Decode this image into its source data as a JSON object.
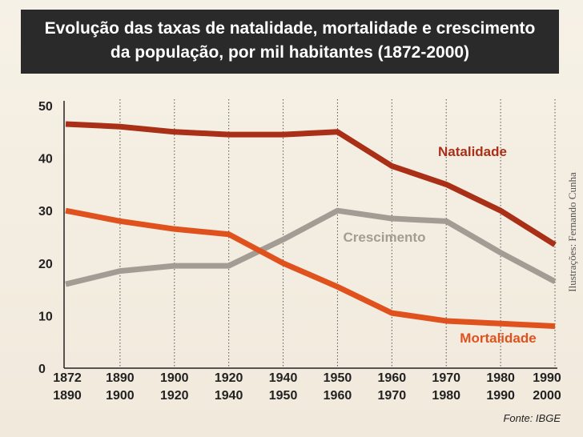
{
  "chart_data": {
    "type": "line",
    "title_line1": "Evolução das taxas de natalidade, mortalidade e crescimento",
    "title_line2": "da população, por mil habitantes (1872-2000)",
    "categories": [
      [
        "1872",
        "1890"
      ],
      [
        "1890",
        "1900"
      ],
      [
        "1900",
        "1920"
      ],
      [
        "1920",
        "1940"
      ],
      [
        "1940",
        "1950"
      ],
      [
        "1950",
        "1960"
      ],
      [
        "1960",
        "1970"
      ],
      [
        "1970",
        "1980"
      ],
      [
        "1980",
        "1990"
      ],
      [
        "1990",
        "2000"
      ]
    ],
    "ylim": [
      0,
      50
    ],
    "yticks": [
      "0",
      "10",
      "20",
      "30",
      "40",
      "50"
    ],
    "grid": true,
    "series": [
      {
        "name": "Natalidade",
        "color": "#a92f17",
        "values": [
          46.5,
          46.0,
          45.0,
          44.5,
          44.5,
          45.0,
          38.5,
          35.0,
          30.0,
          23.5
        ]
      },
      {
        "name": "Crescimento",
        "color": "#a39c95",
        "values": [
          16.0,
          18.5,
          19.5,
          19.5,
          24.5,
          30.0,
          28.5,
          28.0,
          22.0,
          16.5
        ]
      },
      {
        "name": "Mortalidade",
        "color": "#e0521d",
        "values": [
          30.0,
          28.0,
          26.5,
          25.5,
          20.0,
          15.5,
          10.5,
          9.0,
          8.5,
          8.0
        ]
      }
    ],
    "source": "Fonte: IBGE",
    "credit": "Ilustrações: Fernando Cunha"
  }
}
